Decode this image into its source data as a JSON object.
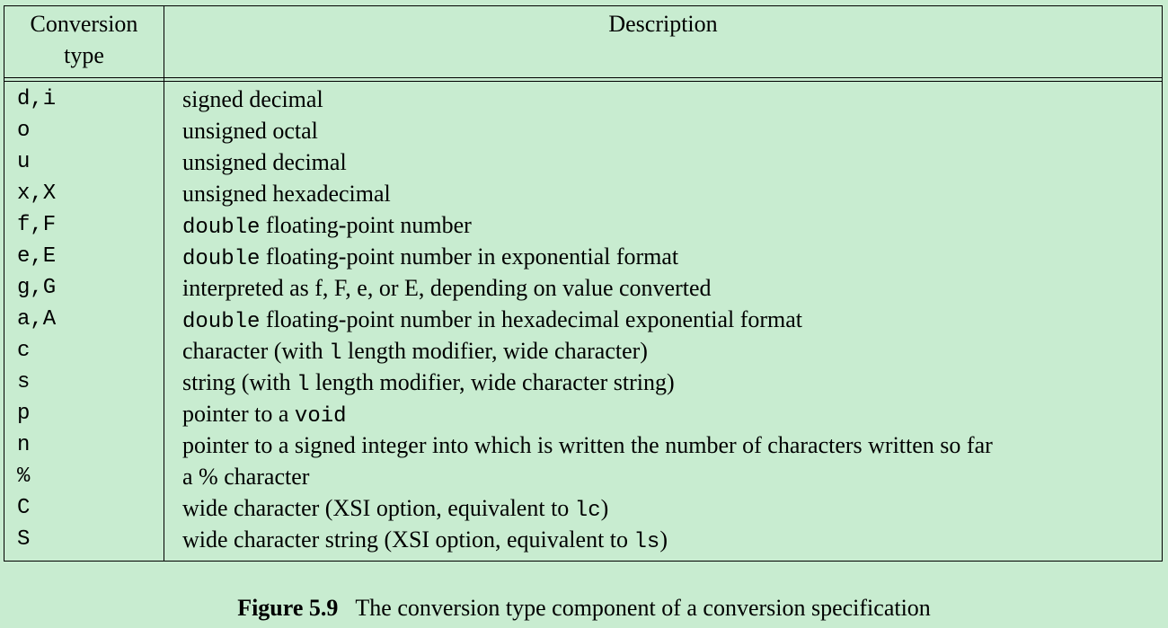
{
  "table": {
    "header": {
      "type_line1": "Conversion",
      "type_line2": "type",
      "description": "Description"
    },
    "rows": [
      {
        "type": "d,i",
        "description": [
          {
            "text": "signed decimal",
            "mono": false
          }
        ]
      },
      {
        "type": "o",
        "description": [
          {
            "text": "unsigned octal",
            "mono": false
          }
        ]
      },
      {
        "type": "u",
        "description": [
          {
            "text": "unsigned decimal",
            "mono": false
          }
        ]
      },
      {
        "type": "x,X",
        "description": [
          {
            "text": "unsigned hexadecimal",
            "mono": false
          }
        ]
      },
      {
        "type": "f,F",
        "description": [
          {
            "text": "double",
            "mono": true
          },
          {
            "text": " floating-point number",
            "mono": false
          }
        ]
      },
      {
        "type": "e,E",
        "description": [
          {
            "text": "double",
            "mono": true
          },
          {
            "text": " floating-point number in exponential format",
            "mono": false
          }
        ]
      },
      {
        "type": "g,G",
        "description": [
          {
            "text": "interpreted as f, F, e, or E, depending on value converted",
            "mono": false
          }
        ]
      },
      {
        "type": "a,A",
        "description": [
          {
            "text": "double",
            "mono": true
          },
          {
            "text": " floating-point number in hexadecimal exponential format",
            "mono": false
          }
        ]
      },
      {
        "type": "c",
        "description": [
          {
            "text": "character (with ",
            "mono": false
          },
          {
            "text": "l",
            "mono": true
          },
          {
            "text": " length modifier, wide character)",
            "mono": false
          }
        ]
      },
      {
        "type": "s",
        "description": [
          {
            "text": "string (with ",
            "mono": false
          },
          {
            "text": "l",
            "mono": true
          },
          {
            "text": " length modifier, wide character string)",
            "mono": false
          }
        ]
      },
      {
        "type": "p",
        "description": [
          {
            "text": "pointer to a ",
            "mono": false
          },
          {
            "text": "void",
            "mono": true
          }
        ]
      },
      {
        "type": "n",
        "description": [
          {
            "text": "pointer to a signed integer into which is written the number of characters written so far",
            "mono": false
          }
        ]
      },
      {
        "type": "%",
        "description": [
          {
            "text": "a % character",
            "mono": false
          }
        ]
      },
      {
        "type": "C",
        "description": [
          {
            "text": "wide character (XSI option, equivalent to ",
            "mono": false
          },
          {
            "text": "lc",
            "mono": true
          },
          {
            "text": ")",
            "mono": false
          }
        ]
      },
      {
        "type": "S",
        "description": [
          {
            "text": "wide character string (XSI option, equivalent to ",
            "mono": false
          },
          {
            "text": "ls",
            "mono": true
          },
          {
            "text": ")",
            "mono": false
          }
        ]
      }
    ]
  },
  "caption": {
    "label": "Figure 5.9",
    "text": "The conversion type component of a conversion specification"
  }
}
